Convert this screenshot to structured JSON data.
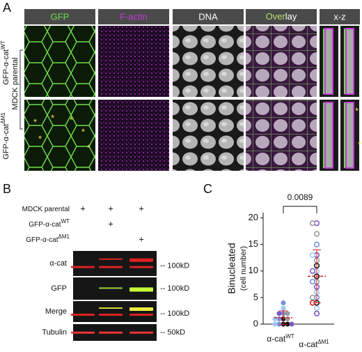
{
  "panel_a": {
    "label": "A",
    "columns": [
      "GFP",
      "F-actin",
      "DNA"
    ],
    "overlay_parts": [
      "Over",
      "lay"
    ],
    "xz": "x-z",
    "rows": [
      {
        "prefix": "GFP-α-cat",
        "sup": "WT"
      },
      {
        "prefix": "GFP-α-cat",
        "sup": "ΔM1"
      }
    ],
    "group": "MDCK parental",
    "asterisk": "*"
  },
  "panel_b": {
    "label": "B",
    "conditions": [
      {
        "prefix": "MDCK parental",
        "marks": [
          "+",
          "+",
          "+"
        ]
      },
      {
        "prefix": "GFP-α-cat",
        "sup": "WT",
        "marks": [
          null,
          "+",
          null
        ]
      },
      {
        "prefix": "GFP-α-cat",
        "sup": "ΔM1",
        "marks": [
          null,
          null,
          "+"
        ]
      }
    ],
    "blots": [
      {
        "name": "α-cat",
        "size": "-- 100kD"
      },
      {
        "name": "GFP",
        "size": "-- 100kD"
      },
      {
        "name": "Merge",
        "size": "-- 100kD"
      },
      {
        "name": "Tubulin",
        "size": "-- 50kD"
      }
    ]
  },
  "chart_data": {
    "type": "scatter",
    "label": "C",
    "y_label": "Binucleated",
    "y_sublabel": "(cell number)",
    "categories": [
      "α-cat",
      "α-cat"
    ],
    "category_superscripts": [
      "WT",
      "ΔM1"
    ],
    "ylim": [
      0,
      21
    ],
    "yticks": [
      0,
      5,
      10,
      15,
      20
    ],
    "p_value": "0.0089",
    "mean_color": "#d62020",
    "groups": [
      {
        "values": [
          0,
          0,
          0,
          0,
          0,
          1,
          1,
          1,
          1,
          2,
          2,
          2,
          3,
          4
        ],
        "filled": true,
        "mean": 1.2,
        "sd": 1.3,
        "colors": [
          "#111111",
          "#7b8fe0",
          "#111111",
          "#9fc7ef",
          "#7e57c2",
          "#111111",
          "#7b8fe0",
          "#999999",
          "#9fc7ef",
          "#7b8fe0",
          "#7e57c2",
          "#999999",
          "#9fc7ef",
          "#7b8fe0"
        ]
      },
      {
        "values": [
          2,
          3,
          4,
          4,
          5,
          5,
          6,
          7,
          8,
          8,
          9,
          10,
          10,
          11,
          12,
          13,
          13,
          15,
          17,
          19,
          19
        ],
        "filled": false,
        "mean": 9,
        "sd": 5,
        "colors": [
          "#7e57c2",
          "#9fc7ef",
          "#111111",
          "#d62020",
          "#7b8fe0",
          "#999999",
          "#9fc7ef",
          "#7e57c2",
          "#999999",
          "#7b8fe0",
          "#111111",
          "#9fc7ef",
          "#7e57c2",
          "#111111",
          "#999999",
          "#7e57c2",
          "#9fc7ef",
          "#7b8fe0",
          "#999999",
          "#7e57c2",
          "#999999"
        ]
      }
    ]
  }
}
